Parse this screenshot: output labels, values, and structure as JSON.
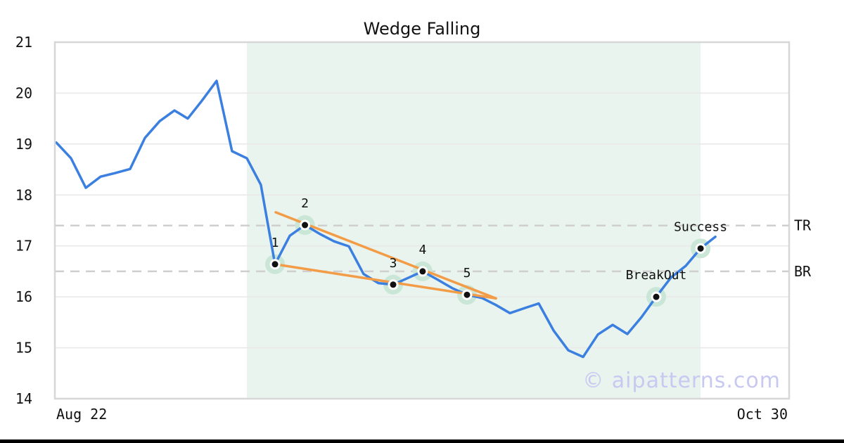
{
  "title": "Wedge Falling",
  "watermark": "© aipatterns.com",
  "colors": {
    "line": "#3b7fe0",
    "trendline": "#f39c47",
    "pattern_zone": "#e9f4ef",
    "marker_halo": "#c9e6d6",
    "marker_ring": "#ffffff",
    "marker_dot": "#111111",
    "grid": "#e9e9e9",
    "border": "#d7d7d7",
    "dashed": "#cfcfcf",
    "text": "#111111",
    "watermark_color": "#c8c9f1",
    "bottom_bar": "#000000"
  },
  "chart_data": {
    "type": "line",
    "title": "Wedge Falling",
    "xlabel": "",
    "ylabel": "",
    "ylim": [
      14,
      21
    ],
    "y_ticks": [
      14,
      15,
      16,
      17,
      18,
      19,
      20,
      21
    ],
    "x_range_days": [
      0,
      69
    ],
    "x_ticks": [
      {
        "label": "Aug 22",
        "day": 0
      },
      {
        "label": "Oct 30",
        "day": 69
      }
    ],
    "grid": "horizontal",
    "legend": "none",
    "pattern_zone_days": [
      18.04,
      60.68
    ],
    "reference_lines": [
      {
        "label": "TR",
        "value": 17.4
      },
      {
        "label": "BR",
        "value": 16.5
      }
    ],
    "trendlines": [
      {
        "name": "upper-wedge-line",
        "from": [
          20.75,
          17.66
        ],
        "to": [
          41.44,
          15.97
        ]
      },
      {
        "name": "lower-wedge-line",
        "from": [
          20.69,
          16.64
        ],
        "to": [
          41.44,
          15.97
        ]
      }
    ],
    "annotations": [
      {
        "label": "1",
        "day": 20.69,
        "value": 16.64
      },
      {
        "label": "2",
        "day": 23.5,
        "value": 17.41
      },
      {
        "label": "3",
        "day": 31.79,
        "value": 16.24
      },
      {
        "label": "4",
        "day": 34.56,
        "value": 16.5
      },
      {
        "label": "5",
        "day": 38.73,
        "value": 16.04
      },
      {
        "label": "BreakOut",
        "day": 56.51,
        "value": 16.0
      },
      {
        "label": "Success",
        "day": 60.68,
        "value": 16.95
      }
    ],
    "series": [
      {
        "name": "price",
        "points": [
          [
            0.13,
            19.03
          ],
          [
            1.52,
            18.72
          ],
          [
            2.91,
            18.14
          ],
          [
            4.3,
            18.36
          ],
          [
            5.68,
            18.43
          ],
          [
            7.07,
            18.51
          ],
          [
            8.46,
            19.12
          ],
          [
            9.85,
            19.45
          ],
          [
            11.24,
            19.66
          ],
          [
            12.49,
            19.5
          ],
          [
            13.81,
            19.85
          ],
          [
            15.2,
            20.24
          ],
          [
            16.65,
            18.86
          ],
          [
            18.04,
            18.72
          ],
          [
            19.36,
            18.2
          ],
          [
            20.69,
            16.64
          ],
          [
            22.08,
            17.2
          ],
          [
            23.5,
            17.41
          ],
          [
            24.85,
            17.24
          ],
          [
            26.24,
            17.09
          ],
          [
            27.63,
            16.99
          ],
          [
            29.01,
            16.45
          ],
          [
            30.4,
            16.27
          ],
          [
            31.79,
            16.24
          ],
          [
            33.18,
            16.37
          ],
          [
            34.56,
            16.5
          ],
          [
            35.95,
            16.34
          ],
          [
            37.34,
            16.17
          ],
          [
            38.73,
            16.04
          ],
          [
            40.12,
            15.98
          ],
          [
            41.44,
            15.84
          ],
          [
            42.76,
            15.68
          ],
          [
            44.15,
            15.78
          ],
          [
            45.47,
            15.87
          ],
          [
            46.86,
            15.34
          ],
          [
            48.25,
            14.95
          ],
          [
            49.64,
            14.82
          ],
          [
            51.03,
            15.26
          ],
          [
            52.42,
            15.45
          ],
          [
            53.8,
            15.27
          ],
          [
            55.12,
            15.6
          ],
          [
            56.51,
            16.0
          ],
          [
            57.9,
            16.38
          ],
          [
            59.29,
            16.61
          ],
          [
            60.68,
            16.95
          ],
          [
            62.07,
            17.18
          ]
        ]
      }
    ]
  }
}
